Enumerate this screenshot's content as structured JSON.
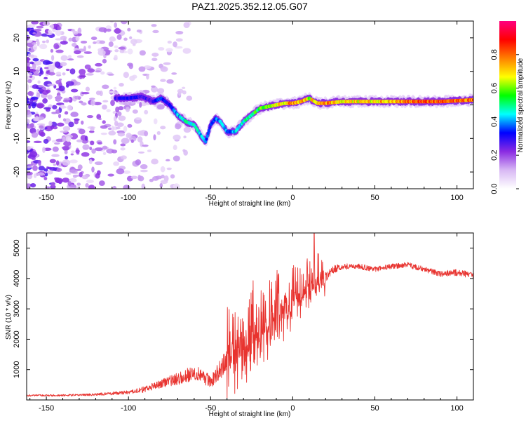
{
  "title": "PAZ1.2025.352.12.05.G07",
  "chart_data": [
    {
      "type": "heatmap",
      "title": "PAZ1.2025.352.12.05.G07",
      "xlabel": "Height of straight line (km)",
      "ylabel": "Frequency (Hz)",
      "xlim": [
        -162,
        110
      ],
      "ylim": [
        -25,
        25
      ],
      "xticks": [
        -150,
        -100,
        -50,
        0,
        50,
        100
      ],
      "yticks": [
        -20,
        -10,
        0,
        10,
        20
      ],
      "colorbar": {
        "label": "Normalized spectral amplitude",
        "range": [
          0,
          1
        ],
        "ticks": [
          0.0,
          0.2,
          0.4,
          0.6,
          0.8
        ],
        "tick_labels": [
          "0.0",
          "0.2",
          "0.4",
          "0.6",
          "0.8"
        ],
        "colormap": [
          "#ffffff",
          "#d8b8f4",
          "#8a2be2",
          "#0000ff",
          "#00ffff",
          "#00ff00",
          "#ffff00",
          "#ff8000",
          "#ff0000",
          "#ff0080"
        ]
      },
      "ridge": {
        "x": [
          -108,
          -100,
          -92,
          -85,
          -80,
          -75,
          -70,
          -65,
          -60,
          -56,
          -53,
          -50,
          -47,
          -44,
          -40,
          -35,
          -30,
          -25,
          -20,
          -15,
          -10,
          -5,
          0,
          5,
          10,
          15,
          20,
          30,
          50,
          70,
          90,
          110
        ],
        "freq": [
          2,
          2,
          2.5,
          1,
          2,
          0,
          -3,
          -5,
          -6,
          -9,
          -11,
          -6,
          -4,
          -5,
          -8,
          -8,
          -5,
          -3,
          -1,
          -0.5,
          0,
          0.5,
          0.5,
          1,
          2,
          0.5,
          0.5,
          1,
          1,
          1,
          1,
          1.5
        ],
        "amplitude": [
          0.3,
          0.35,
          0.3,
          0.3,
          0.4,
          0.35,
          0.45,
          0.5,
          0.5,
          0.45,
          0.4,
          0.35,
          0.4,
          0.45,
          0.4,
          0.45,
          0.5,
          0.55,
          0.6,
          0.65,
          0.7,
          0.75,
          0.85,
          0.8,
          0.7,
          0.8,
          0.85,
          0.75,
          0.75,
          0.85,
          0.9,
          0.85
        ]
      }
    },
    {
      "type": "line",
      "xlabel": "Height of straight line (km)",
      "ylabel": "SNR (10 * v/v)",
      "xlim": [
        -162,
        110
      ],
      "ylim": [
        0,
        5500
      ],
      "xticks": [
        -150,
        -100,
        -50,
        0,
        50,
        100
      ],
      "yticks": [
        1000,
        2000,
        3000,
        4000,
        5000
      ],
      "series": [
        {
          "name": "SNR",
          "color": "#e8332f",
          "x": [
            -162,
            -140,
            -120,
            -100,
            -90,
            -80,
            -70,
            -60,
            -55,
            -50,
            -40,
            -35,
            -30,
            -25,
            -20,
            -15,
            -10,
            -5,
            0,
            5,
            10,
            15,
            20,
            25,
            30,
            40,
            50,
            60,
            70,
            80,
            90,
            100,
            110
          ],
          "values": [
            150,
            150,
            180,
            250,
            350,
            550,
            700,
            900,
            800,
            600,
            1300,
            1500,
            1700,
            2100,
            2300,
            2500,
            2700,
            2900,
            3100,
            3400,
            3700,
            3800,
            4000,
            4300,
            4400,
            4400,
            4300,
            4400,
            4450,
            4300,
            4150,
            4200,
            4100
          ],
          "noise": [
            60,
            60,
            80,
            120,
            200,
            300,
            400,
            500,
            500,
            400,
            800,
            900,
            900,
            800,
            700,
            700,
            650,
            600,
            550,
            500,
            450,
            400,
            350,
            250,
            200,
            180,
            170,
            170,
            170,
            180,
            200,
            220,
            220
          ],
          "spike": {
            "x": 13,
            "value": 5500
          }
        }
      ]
    }
  ]
}
